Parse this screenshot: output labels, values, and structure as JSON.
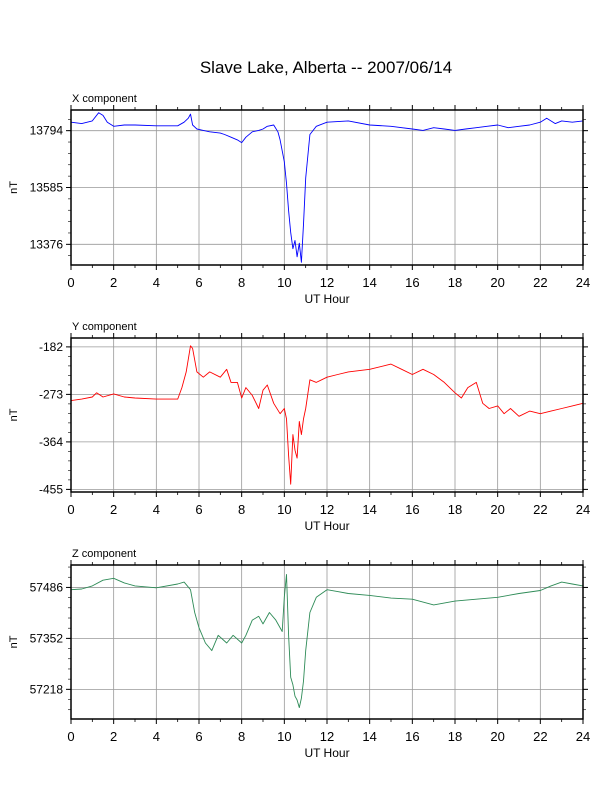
{
  "title": "Slave Lake, Alberta -- 2007/06/14",
  "x_axis_label": "UT Hour",
  "x_ticks": [
    0,
    2,
    4,
    6,
    8,
    10,
    12,
    14,
    16,
    18,
    20,
    22,
    24
  ],
  "chart_data": [
    {
      "type": "line",
      "title": "X component",
      "xlabel": "UT Hour",
      "ylabel": "nT",
      "color": "#0000ff",
      "xlim": [
        0,
        24
      ],
      "ylim": [
        13300,
        13870
      ],
      "yticks": [
        13794,
        13585,
        13376
      ],
      "grid": true,
      "series": [
        {
          "x": [
            0,
            0.5,
            1,
            1.3,
            1.5,
            1.7,
            2,
            2.5,
            3,
            4,
            5,
            5.3,
            5.5,
            5.6,
            5.7,
            5.9,
            6.2,
            6.5,
            7,
            7.2,
            7.5,
            7.8,
            8,
            8.2,
            8.5,
            8.8,
            9,
            9.2,
            9.5,
            9.7,
            9.8,
            10,
            10.1,
            10.2,
            10.3,
            10.4,
            10.5,
            10.6,
            10.7,
            10.8,
            10.9,
            11,
            11.2,
            11.5,
            12,
            13,
            14,
            15,
            16,
            16.5,
            17,
            17.5,
            18,
            18.5,
            19,
            19.5,
            20,
            20.5,
            21,
            21.5,
            22,
            22.3,
            22.7,
            23,
            23.5,
            24
          ],
          "values": [
            13825,
            13820,
            13830,
            13860,
            13850,
            13825,
            13810,
            13815,
            13815,
            13812,
            13812,
            13825,
            13840,
            13855,
            13815,
            13800,
            13795,
            13790,
            13785,
            13780,
            13770,
            13760,
            13750,
            13770,
            13790,
            13795,
            13800,
            13810,
            13815,
            13790,
            13760,
            13680,
            13600,
            13500,
            13420,
            13360,
            13390,
            13330,
            13380,
            13310,
            13450,
            13620,
            13780,
            13810,
            13825,
            13830,
            13815,
            13810,
            13800,
            13795,
            13805,
            13800,
            13795,
            13800,
            13805,
            13810,
            13815,
            13805,
            13810,
            13815,
            13825,
            13840,
            13820,
            13830,
            13825,
            13830
          ]
        }
      ]
    },
    {
      "type": "line",
      "title": "Y component",
      "xlabel": "UT Hour",
      "ylabel": "nT",
      "color": "#ff0000",
      "xlim": [
        0,
        24
      ],
      "ylim": [
        -460,
        -165
      ],
      "yticks": [
        -182,
        -273,
        -364,
        -455
      ],
      "grid": true,
      "series": [
        {
          "x": [
            0,
            0.5,
            1,
            1.2,
            1.5,
            2,
            2.5,
            3,
            4,
            5,
            5.2,
            5.4,
            5.6,
            5.7,
            5.9,
            6.2,
            6.5,
            7,
            7.3,
            7.5,
            7.8,
            8,
            8.2,
            8.5,
            8.8,
            9,
            9.2,
            9.5,
            9.8,
            10,
            10.1,
            10.2,
            10.3,
            10.4,
            10.5,
            10.6,
            10.7,
            10.8,
            10.9,
            11,
            11.2,
            11.5,
            12,
            12.5,
            13,
            14,
            15,
            15.5,
            16,
            16.5,
            17,
            17.5,
            18,
            18.3,
            18.6,
            19,
            19.3,
            19.6,
            20,
            20.3,
            20.6,
            21,
            21.5,
            22,
            22.5,
            23,
            23.5,
            24
          ],
          "values": [
            -285,
            -282,
            -278,
            -270,
            -278,
            -272,
            -278,
            -280,
            -282,
            -282,
            -260,
            -230,
            -180,
            -185,
            -230,
            -240,
            -230,
            -240,
            -225,
            -250,
            -250,
            -280,
            -260,
            -275,
            -300,
            -265,
            -255,
            -290,
            -310,
            -300,
            -320,
            -390,
            -445,
            -350,
            -380,
            -395,
            -325,
            -350,
            -320,
            -300,
            -245,
            -250,
            -240,
            -235,
            -230,
            -225,
            -215,
            -225,
            -235,
            -225,
            -235,
            -250,
            -270,
            -280,
            -260,
            -250,
            -290,
            -300,
            -295,
            -310,
            -300,
            -315,
            -305,
            -310,
            -305,
            -300,
            -295,
            -290
          ]
        }
      ]
    },
    {
      "type": "line",
      "title": "Z component",
      "xlabel": "UT Hour",
      "ylabel": "nT",
      "color": "#2e8b57",
      "xlim": [
        0,
        24
      ],
      "ylim": [
        57140,
        57545
      ],
      "yticks": [
        57486,
        57352,
        57218
      ],
      "grid": true,
      "series": [
        {
          "x": [
            0,
            0.5,
            1,
            1.5,
            2,
            2.5,
            3,
            4,
            5,
            5.3,
            5.6,
            5.8,
            6,
            6.3,
            6.6,
            6.9,
            7.3,
            7.6,
            8,
            8.2,
            8.5,
            8.8,
            9,
            9.3,
            9.6,
            9.9,
            10,
            10.1,
            10.2,
            10.3,
            10.4,
            10.5,
            10.6,
            10.7,
            10.8,
            10.9,
            11,
            11.2,
            11.5,
            12,
            12.5,
            13,
            14,
            15,
            16,
            17,
            18,
            19,
            20,
            21,
            22,
            22.5,
            23,
            23.5,
            24
          ],
          "values": [
            57480,
            57482,
            57490,
            57505,
            57510,
            57498,
            57490,
            57485,
            57495,
            57500,
            57480,
            57420,
            57380,
            57340,
            57320,
            57360,
            57340,
            57360,
            57340,
            57360,
            57400,
            57410,
            57390,
            57420,
            57400,
            57370,
            57460,
            57520,
            57360,
            57250,
            57230,
            57200,
            57190,
            57170,
            57195,
            57240,
            57320,
            57420,
            57460,
            57480,
            57475,
            57470,
            57465,
            57458,
            57455,
            57440,
            57450,
            57455,
            57460,
            57470,
            57478,
            57490,
            57500,
            57495,
            57490
          ]
        }
      ]
    }
  ]
}
